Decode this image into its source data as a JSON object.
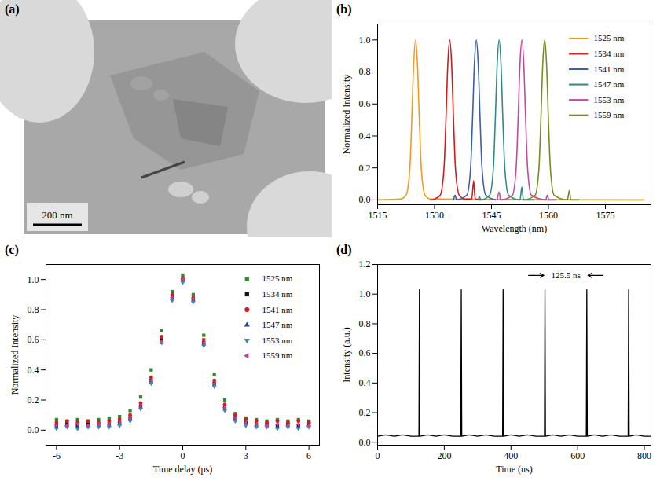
{
  "chart_data": [
    {
      "type": "image",
      "panel": "(a)",
      "annotations": [
        "200 nm"
      ]
    },
    {
      "type": "line",
      "panel": "(b)",
      "x_label": "Wavelength (nm)",
      "y_label": "Normalized Intensity",
      "xlim": [
        1515,
        1587
      ],
      "xticks": [
        1515,
        1530,
        1545,
        1560,
        1575
      ],
      "ylim": [
        -0.03,
        1.1
      ],
      "yticks": [
        {
          "value": 0,
          "label": "0.0"
        },
        0.2,
        0.4,
        0.6,
        0.8,
        {
          "value": 1,
          "label": "1.0"
        }
      ],
      "legend": "top-right",
      "series": [
        {
          "name": "1525 nm",
          "color": "#f29b1d",
          "x": [
            1515,
            1521,
            1522.5,
            1523.5,
            1524,
            1524.5,
            1525,
            1525.5,
            1526,
            1526.5,
            1527.5,
            1529,
            1585
          ],
          "values": [
            0,
            0.005,
            0.03,
            0.2,
            0.5,
            0.85,
            1,
            0.85,
            0.5,
            0.2,
            0.03,
            0.005,
            0
          ]
        },
        {
          "name": "1534 nm",
          "color": "#d7191c",
          "x": [
            1529,
            1530,
            1531.5,
            1532.5,
            1533,
            1533.5,
            1534,
            1534.5,
            1535,
            1535.5,
            1536.5,
            1538,
            1539.8,
            1540.3,
            1540.7,
            1542
          ],
          "values": [
            0,
            0.005,
            0.03,
            0.2,
            0.5,
            0.85,
            1,
            0.85,
            0.5,
            0.2,
            0.03,
            0.005,
            0.005,
            0.12,
            0.005,
            0
          ]
        },
        {
          "name": "1541 nm",
          "color": "#3a5fb0",
          "x": [
            1535,
            1535.4,
            1535.8,
            1538.5,
            1539.5,
            1540,
            1540.5,
            1541,
            1541.5,
            1542,
            1542.5,
            1543.5,
            1546
          ],
          "values": [
            0,
            0.03,
            0,
            0.03,
            0.2,
            0.5,
            0.85,
            1,
            0.85,
            0.5,
            0.2,
            0.03,
            0
          ]
        },
        {
          "name": "1547 nm",
          "color": "#2e8b8b",
          "x": [
            1541.5,
            1541.8,
            1542.2,
            1544.5,
            1545.5,
            1546,
            1546.5,
            1547,
            1547.5,
            1548,
            1548.5,
            1549.5,
            1552.5,
            1553,
            1553.4,
            1556
          ],
          "values": [
            0,
            0.02,
            0,
            0.03,
            0.2,
            0.5,
            0.85,
            1,
            0.85,
            0.5,
            0.2,
            0.03,
            0,
            0.08,
            0,
            0
          ]
        },
        {
          "name": "1553 nm",
          "color": "#c8489c",
          "x": [
            1546.5,
            1547,
            1547.4,
            1550.5,
            1551.5,
            1552,
            1552.5,
            1553,
            1553.5,
            1554,
            1554.5,
            1555.5,
            1559.3,
            1559.7,
            1560.1,
            1562
          ],
          "values": [
            0,
            0.05,
            0,
            0.03,
            0.2,
            0.5,
            0.85,
            1,
            0.85,
            0.5,
            0.2,
            0.03,
            0,
            0.03,
            0,
            0
          ]
        },
        {
          "name": "1559 nm",
          "color": "#7a8c1f",
          "x": [
            1554,
            1556.5,
            1557.5,
            1558,
            1558.5,
            1559,
            1559.5,
            1560,
            1560.5,
            1561.5,
            1565,
            1565.5,
            1565.9,
            1568
          ],
          "values": [
            0,
            0.03,
            0.2,
            0.5,
            0.85,
            1,
            0.85,
            0.5,
            0.2,
            0.03,
            0,
            0.06,
            0,
            0
          ]
        }
      ]
    },
    {
      "type": "scatter",
      "panel": "(c)",
      "x_label": "Time delay (ps)",
      "y_label": "Normalized Intensity",
      "xlim": [
        -6.5,
        6.5
      ],
      "xticks": [
        -6,
        -3,
        0,
        3,
        6
      ],
      "ylim": [
        -0.1,
        1.1
      ],
      "yticks": [
        {
          "value": 0,
          "label": "0.0"
        },
        0.2,
        0.4,
        0.6,
        0.8,
        {
          "value": 1,
          "label": "1.0"
        }
      ],
      "legend": "top-right",
      "x": [
        -6,
        -5.5,
        -5,
        -4.5,
        -4,
        -3.5,
        -3,
        -2.5,
        -2,
        -1.5,
        -1,
        -0.5,
        0,
        0.5,
        1,
        1.5,
        2,
        2.5,
        3,
        3.5,
        4,
        4.5,
        5,
        5.5,
        6
      ],
      "series": [
        {
          "name": "1525 nm",
          "color": "#2e8b2e",
          "marker": "square",
          "values": [
            0.07,
            0.06,
            0.07,
            0.06,
            0.07,
            0.08,
            0.09,
            0.13,
            0.22,
            0.4,
            0.66,
            0.92,
            1.03,
            0.9,
            0.63,
            0.37,
            0.2,
            0.11,
            0.08,
            0.07,
            0.06,
            0.07,
            0.06,
            0.07,
            0.06
          ]
        },
        {
          "name": "1534 nm",
          "color": "#111111",
          "marker": "square",
          "values": [
            0.03,
            0.04,
            0.03,
            0.04,
            0.04,
            0.04,
            0.05,
            0.08,
            0.16,
            0.33,
            0.6,
            0.88,
            1.0,
            0.87,
            0.58,
            0.31,
            0.15,
            0.08,
            0.05,
            0.04,
            0.04,
            0.03,
            0.04,
            0.03,
            0.04
          ]
        },
        {
          "name": "1541 nm",
          "color": "#d7191c",
          "marker": "circle",
          "values": [
            0.05,
            0.06,
            0.05,
            0.06,
            0.05,
            0.06,
            0.07,
            0.1,
            0.18,
            0.35,
            0.62,
            0.9,
            1.01,
            0.88,
            0.6,
            0.33,
            0.17,
            0.1,
            0.07,
            0.06,
            0.05,
            0.06,
            0.05,
            0.06,
            0.05
          ]
        },
        {
          "name": "1547 nm",
          "color": "#2a3f9f",
          "marker": "triangle",
          "values": [
            0.02,
            0.03,
            0.02,
            0.03,
            0.03,
            0.03,
            0.04,
            0.07,
            0.15,
            0.32,
            0.58,
            0.87,
            0.99,
            0.86,
            0.57,
            0.3,
            0.14,
            0.07,
            0.04,
            0.03,
            0.03,
            0.02,
            0.03,
            0.02,
            0.03
          ]
        },
        {
          "name": "1553 nm",
          "color": "#3a8fa0",
          "marker": "triangle-down",
          "values": [
            0.01,
            0.02,
            0.01,
            0.02,
            0.02,
            0.02,
            0.03,
            0.06,
            0.14,
            0.31,
            0.58,
            0.86,
            0.98,
            0.85,
            0.56,
            0.29,
            0.13,
            0.06,
            0.03,
            0.02,
            0.02,
            0.01,
            0.02,
            0.01,
            0.02
          ]
        },
        {
          "name": "1559 nm",
          "color": "#c040a0",
          "marker": "triangle-left",
          "values": [
            0.03,
            0.03,
            0.04,
            0.03,
            0.04,
            0.04,
            0.05,
            0.08,
            0.16,
            0.33,
            0.59,
            0.88,
            1.0,
            0.87,
            0.58,
            0.31,
            0.15,
            0.08,
            0.05,
            0.04,
            0.03,
            0.04,
            0.03,
            0.04,
            0.03
          ]
        }
      ]
    },
    {
      "type": "line",
      "panel": "(d)",
      "x_label": "Time (ns)",
      "y_label": "Intensity (a.u.)",
      "xlim": [
        0,
        820
      ],
      "xticks": [
        0,
        200,
        400,
        600,
        800
      ],
      "ylim": [
        -0.02,
        1.2
      ],
      "yticks": [
        {
          "value": 0,
          "label": "0.0"
        },
        0.2,
        0.4,
        0.6,
        0.8,
        {
          "value": 1,
          "label": "1.0"
        },
        1.2
      ],
      "color": "#000000",
      "annotations": [
        "125.5 ns"
      ],
      "x": [
        0,
        25,
        50,
        75,
        100,
        124,
        125.5,
        127,
        150,
        175,
        200,
        225,
        249.5,
        251,
        252.5,
        275,
        300,
        325,
        350,
        375,
        376.5,
        378,
        400,
        425,
        450,
        475,
        500.5,
        502,
        503.5,
        525,
        550,
        575,
        600,
        626,
        627.5,
        629,
        650,
        675,
        700,
        725,
        751.5,
        753,
        754.5,
        775,
        800,
        820
      ],
      "values": [
        0.04,
        0.05,
        0.04,
        0.05,
        0.04,
        0.04,
        1.03,
        0.04,
        0.05,
        0.04,
        0.05,
        0.04,
        0.04,
        1.03,
        0.04,
        0.05,
        0.04,
        0.05,
        0.04,
        0.04,
        1.03,
        0.04,
        0.05,
        0.04,
        0.05,
        0.04,
        0.04,
        1.03,
        0.04,
        0.05,
        0.04,
        0.05,
        0.04,
        0.04,
        1.03,
        0.04,
        0.05,
        0.04,
        0.05,
        0.04,
        0.04,
        1.03,
        0.04,
        0.05,
        0.04,
        0.04
      ]
    }
  ]
}
